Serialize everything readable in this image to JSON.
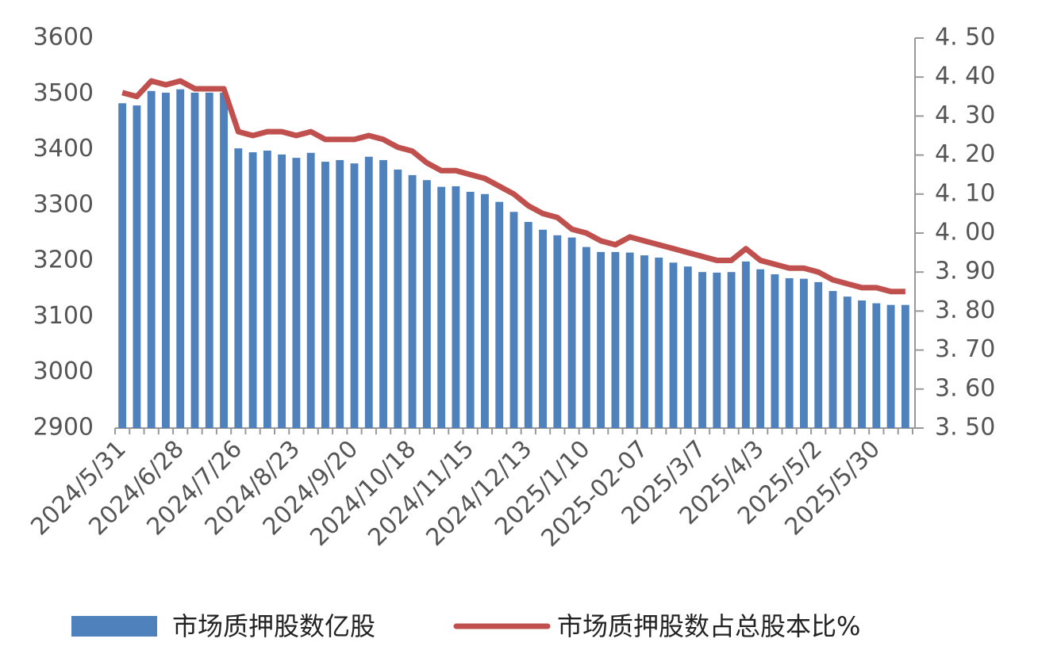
{
  "chart_data": {
    "type": "bar",
    "categories": [
      "2024/5/31",
      null,
      null,
      null,
      "2024/6/28",
      null,
      null,
      null,
      "2024/7/26",
      null,
      null,
      null,
      "2024/8/23",
      null,
      null,
      null,
      "2024/9/20",
      null,
      null,
      null,
      "2024/10/18",
      null,
      null,
      null,
      "2024/11/15",
      null,
      null,
      null,
      "2024/12/13",
      null,
      null,
      null,
      "2025/1/10",
      null,
      null,
      null,
      "2025-02-07",
      null,
      null,
      null,
      "2025/3/7",
      null,
      null,
      null,
      "2025/4/3",
      null,
      null,
      null,
      "2025/5/2",
      null,
      null,
      null,
      "2025/5/30",
      null,
      null
    ],
    "series": [
      {
        "name": "市场质押股数亿股",
        "type": "bar",
        "axis": "y",
        "color": "#4f81bd",
        "values": [
          3483,
          3479,
          3505,
          3502,
          3508,
          3502,
          3502,
          3502,
          3402,
          3395,
          3398,
          3391,
          3385,
          3394,
          3378,
          3381,
          3375,
          3387,
          3381,
          3364,
          3354,
          3345,
          3333,
          3334,
          3324,
          3320,
          3306,
          3288,
          3270,
          3256,
          3246,
          3242,
          3225,
          3216,
          3216,
          3215,
          3210,
          3206,
          3197,
          3190,
          3180,
          3179,
          3180,
          3199,
          3185,
          3176,
          3169,
          3168,
          3162,
          3146,
          3136,
          3129,
          3124,
          3121,
          3121
        ]
      },
      {
        "name": "市场质押股数占总股本比%",
        "type": "line",
        "axis": "y2",
        "color": "#c0504d",
        "values": [
          4.36,
          4.35,
          4.39,
          4.38,
          4.39,
          4.37,
          4.37,
          4.37,
          4.26,
          4.25,
          4.26,
          4.26,
          4.25,
          4.26,
          4.24,
          4.24,
          4.24,
          4.25,
          4.24,
          4.22,
          4.21,
          4.18,
          4.16,
          4.16,
          4.15,
          4.14,
          4.12,
          4.1,
          4.07,
          4.05,
          4.04,
          4.01,
          4.0,
          3.98,
          3.97,
          3.99,
          3.98,
          3.97,
          3.96,
          3.95,
          3.94,
          3.93,
          3.93,
          3.96,
          3.93,
          3.92,
          3.91,
          3.91,
          3.9,
          3.88,
          3.87,
          3.86,
          3.86,
          3.85,
          3.85
        ]
      }
    ],
    "ylim": [
      2900,
      3600
    ],
    "yticks": [
      2900,
      3000,
      3100,
      3200,
      3300,
      3400,
      3500,
      3600
    ],
    "y2lim": [
      3.5,
      4.5
    ],
    "y2ticks": [
      {
        "value": 3.5,
        "label": "3. 50"
      },
      {
        "value": 3.6,
        "label": "3. 60"
      },
      {
        "value": 3.7,
        "label": "3. 70"
      },
      {
        "value": 3.8,
        "label": "3. 80"
      },
      {
        "value": 3.9,
        "label": "3. 90"
      },
      {
        "value": 4.0,
        "label": "4. 00"
      },
      {
        "value": 4.1,
        "label": "4. 10"
      },
      {
        "value": 4.2,
        "label": "4. 20"
      },
      {
        "value": 4.3,
        "label": "4. 30"
      },
      {
        "value": 4.4,
        "label": "4. 40"
      },
      {
        "value": 4.5,
        "label": "4. 50"
      }
    ],
    "grid": false
  }
}
